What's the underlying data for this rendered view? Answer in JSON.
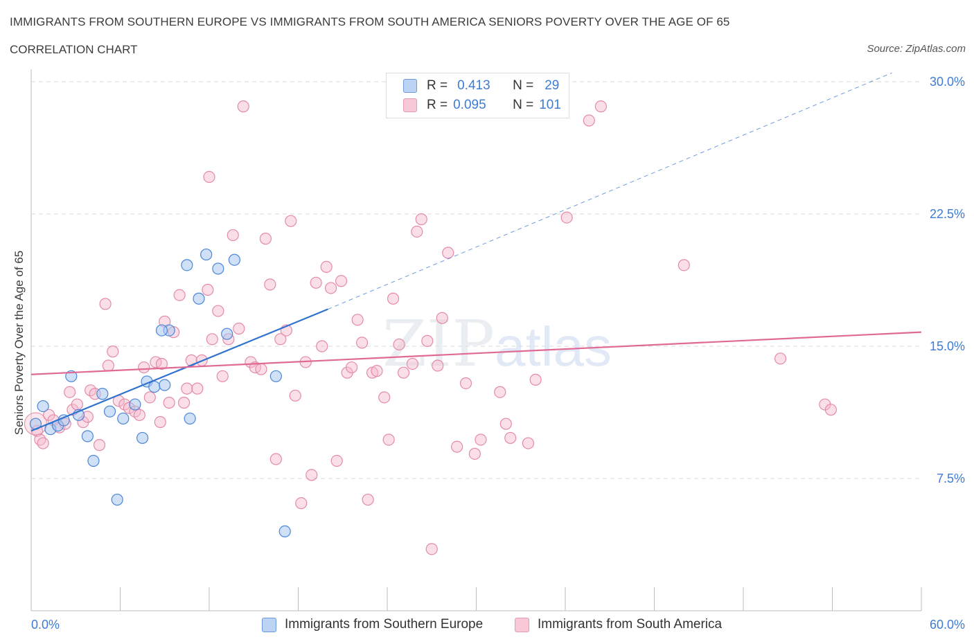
{
  "header": {
    "title": "IMMIGRANTS FROM SOUTHERN EUROPE VS IMMIGRANTS FROM SOUTH AMERICA SENIORS POVERTY OVER THE AGE OF 65",
    "subtitle": "CORRELATION CHART",
    "source": "Source: ZipAtlas.com"
  },
  "legend": {
    "row1": {
      "r_label": "R =",
      "r_value": "0.413",
      "n_label": "N =",
      "n_value": "29"
    },
    "row2": {
      "r_label": "R =",
      "r_value": "0.095",
      "n_label": "N =",
      "n_value": "101"
    }
  },
  "colors": {
    "blue_fill": "#a9c6ef",
    "blue_stroke": "#4a86d8",
    "blue_line": "#2f72cf",
    "pink_fill": "#f6b9cc",
    "pink_stroke": "#e38aa8",
    "pink_line": "#e06a94",
    "tick_text": "#3d7bd4",
    "grid": "#d8d8d8"
  },
  "watermark": {
    "zip": "ZIP",
    "atlas": "atlas"
  },
  "chart_data": {
    "type": "scatter",
    "ylabel": "Seniors Poverty Over the Age of 65",
    "xlim": [
      0,
      60
    ],
    "ylim": [
      0,
      30.5
    ],
    "x_tick_labels": [
      "0.0%",
      "60.0%"
    ],
    "y_ticks": [
      7.5,
      15.0,
      22.5,
      30.0
    ],
    "y_tick_labels": [
      "7.5%",
      "15.0%",
      "22.5%",
      "30.0%"
    ],
    "grid": "horizontal dashed",
    "legend_position": "top-center",
    "series": [
      {
        "name": "Immigrants from Southern Europe",
        "color": "blue",
        "R": 0.413,
        "N": 29,
        "trend": {
          "x0": 0,
          "y0": 10.2,
          "x1": 20.0,
          "y1": 17.1,
          "dashed_to_x": 60,
          "dashed_to_y": 31.2
        },
        "points": [
          [
            0.3,
            10.6
          ],
          [
            0.8,
            11.6
          ],
          [
            1.3,
            10.3
          ],
          [
            1.8,
            10.5
          ],
          [
            2.2,
            10.8
          ],
          [
            2.7,
            13.3
          ],
          [
            3.2,
            11.1
          ],
          [
            3.8,
            9.9
          ],
          [
            4.2,
            8.5
          ],
          [
            4.8,
            12.3
          ],
          [
            5.3,
            11.3
          ],
          [
            6.2,
            10.9
          ],
          [
            7.0,
            11.7
          ],
          [
            7.5,
            9.8
          ],
          [
            7.8,
            13.0
          ],
          [
            8.3,
            12.7
          ],
          [
            9.0,
            12.8
          ],
          [
            9.3,
            15.9
          ],
          [
            10.5,
            19.6
          ],
          [
            10.7,
            10.9
          ],
          [
            11.3,
            17.7
          ],
          [
            11.8,
            20.2
          ],
          [
            12.6,
            19.4
          ],
          [
            13.2,
            15.7
          ],
          [
            13.7,
            19.9
          ],
          [
            16.5,
            13.3
          ],
          [
            17.1,
            4.5
          ],
          [
            5.8,
            6.3
          ],
          [
            8.8,
            15.9
          ]
        ]
      },
      {
        "name": "Immigrants from South America",
        "color": "pink",
        "R": 0.095,
        "N": 101,
        "trend": {
          "x0": 0,
          "y0": 13.4,
          "x1": 60,
          "y1": 15.8
        },
        "points": [
          [
            0.4,
            10.2
          ],
          [
            0.6,
            9.7
          ],
          [
            0.8,
            9.5
          ],
          [
            1.2,
            11.1
          ],
          [
            1.5,
            10.8
          ],
          [
            1.9,
            10.4
          ],
          [
            2.3,
            10.6
          ],
          [
            2.6,
            12.4
          ],
          [
            2.8,
            11.4
          ],
          [
            3.1,
            11.7
          ],
          [
            3.5,
            10.7
          ],
          [
            3.8,
            11.0
          ],
          [
            4.0,
            12.5
          ],
          [
            4.3,
            12.3
          ],
          [
            4.6,
            9.4
          ],
          [
            5.0,
            17.4
          ],
          [
            5.2,
            13.9
          ],
          [
            5.5,
            14.7
          ],
          [
            5.9,
            11.9
          ],
          [
            6.3,
            11.7
          ],
          [
            6.6,
            11.5
          ],
          [
            7.0,
            11.3
          ],
          [
            7.3,
            11.1
          ],
          [
            7.6,
            13.8
          ],
          [
            8.0,
            12.1
          ],
          [
            8.4,
            14.1
          ],
          [
            8.7,
            10.7
          ],
          [
            9.0,
            16.4
          ],
          [
            9.3,
            11.8
          ],
          [
            9.6,
            15.8
          ],
          [
            10.0,
            17.9
          ],
          [
            10.3,
            11.8
          ],
          [
            10.5,
            12.6
          ],
          [
            10.8,
            14.2
          ],
          [
            11.2,
            12.6
          ],
          [
            11.5,
            14.2
          ],
          [
            11.9,
            18.2
          ],
          [
            12.2,
            15.4
          ],
          [
            12.6,
            17.0
          ],
          [
            12.9,
            13.3
          ],
          [
            13.3,
            15.4
          ],
          [
            13.6,
            21.3
          ],
          [
            14.0,
            16.0
          ],
          [
            14.3,
            28.6
          ],
          [
            14.8,
            14.1
          ],
          [
            15.1,
            13.8
          ],
          [
            15.5,
            13.7
          ],
          [
            15.8,
            21.1
          ],
          [
            16.1,
            18.5
          ],
          [
            16.5,
            8.6
          ],
          [
            16.8,
            15.4
          ],
          [
            17.2,
            15.9
          ],
          [
            17.5,
            22.1
          ],
          [
            17.8,
            12.2
          ],
          [
            18.2,
            6.1
          ],
          [
            18.5,
            14.1
          ],
          [
            18.9,
            7.7
          ],
          [
            19.2,
            18.6
          ],
          [
            19.6,
            15.0
          ],
          [
            19.9,
            19.5
          ],
          [
            20.2,
            18.3
          ],
          [
            20.6,
            8.5
          ],
          [
            20.9,
            18.7
          ],
          [
            21.3,
            13.5
          ],
          [
            21.6,
            13.8
          ],
          [
            22.0,
            16.5
          ],
          [
            22.3,
            15.2
          ],
          [
            22.7,
            6.3
          ],
          [
            23.0,
            13.5
          ],
          [
            23.3,
            13.6
          ],
          [
            23.8,
            12.1
          ],
          [
            24.1,
            9.7
          ],
          [
            24.4,
            17.7
          ],
          [
            24.8,
            15.1
          ],
          [
            25.1,
            13.5
          ],
          [
            25.7,
            14.0
          ],
          [
            26.0,
            21.5
          ],
          [
            26.3,
            22.2
          ],
          [
            26.7,
            15.3
          ],
          [
            27.0,
            3.5
          ],
          [
            27.4,
            13.9
          ],
          [
            27.7,
            16.6
          ],
          [
            28.1,
            20.3
          ],
          [
            28.7,
            9.3
          ],
          [
            29.3,
            12.9
          ],
          [
            29.9,
            8.9
          ],
          [
            30.3,
            9.7
          ],
          [
            31.6,
            12.4
          ],
          [
            32.0,
            10.6
          ],
          [
            32.3,
            9.8
          ],
          [
            33.5,
            9.5
          ],
          [
            34.0,
            13.1
          ],
          [
            36.1,
            22.3
          ],
          [
            37.6,
            27.8
          ],
          [
            38.4,
            28.6
          ],
          [
            44.0,
            19.6
          ],
          [
            50.5,
            14.3
          ],
          [
            53.5,
            11.7
          ],
          [
            53.9,
            11.4
          ],
          [
            12.0,
            24.6
          ],
          [
            8.8,
            14.0
          ]
        ]
      }
    ]
  },
  "bottom_legend": [
    {
      "label": "Immigrants from Southern Europe"
    },
    {
      "label": "Immigrants from South America"
    }
  ]
}
